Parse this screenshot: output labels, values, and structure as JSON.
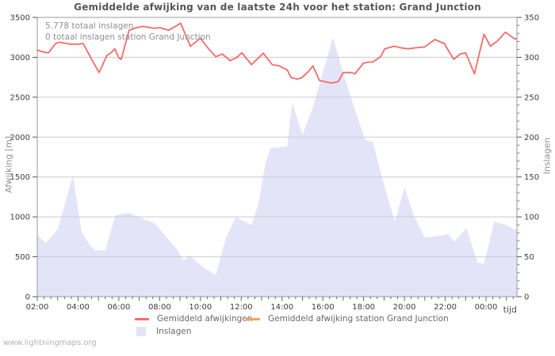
{
  "title": "Gemiddelde afwijking van de laatste 24h voor het station: Grand Junction",
  "annotation": {
    "total": "5.778 totaal inslagen",
    "station": "0 totaal inslagen station Grand Junction"
  },
  "watermark": "www.lightningmaps.org",
  "axes": {
    "left_label": "Afwijking  [m]",
    "right_label": "Inslagen",
    "x_label": "tijd",
    "left_ticks": [
      "0",
      "500",
      "1000",
      "1500",
      "2000",
      "2500",
      "3000",
      "3500"
    ],
    "right_ticks": [
      "0",
      "50",
      "100",
      "150",
      "200",
      "250",
      "300",
      "350"
    ],
    "x_ticks": [
      "02:00",
      "04:00",
      "06:00",
      "08:00",
      "10:00",
      "12:00",
      "14:00",
      "16:00",
      "18:00",
      "20:00",
      "22:00",
      "00:00"
    ]
  },
  "legend": {
    "avg": {
      "label": "Gemiddeld afwijkingen",
      "color": "#f56a6a"
    },
    "station": {
      "label": "Gemiddeld afwijking station Grand Junction",
      "color": "#f2a45e"
    },
    "strikes": {
      "label": "Inslagen",
      "color": "#e4e4f8"
    }
  },
  "chart_data": {
    "type": "line+area",
    "title": "Gemiddelde afwijking van de laatste 24h voor het station: Grand Junction",
    "x_unit": "time (24h, starting 02:00)",
    "left_ylabel": "Afwijking [m]",
    "right_ylabel": "Inslagen",
    "left_ylim": [
      0,
      3500
    ],
    "right_ylim": [
      0,
      350
    ],
    "grid": true,
    "legend_position": "bottom",
    "series": [
      {
        "name": "Gemiddeld afwijkingen",
        "axis": "left",
        "color": "#f56a6a",
        "points": [
          [
            "02:00",
            3090
          ],
          [
            "02:20",
            3064
          ],
          [
            "02:33",
            3057
          ],
          [
            "02:54",
            3173
          ],
          [
            "03:06",
            3189
          ],
          [
            "03:39",
            3163
          ],
          [
            "04:03",
            3166
          ],
          [
            "04:15",
            3173
          ],
          [
            "04:38",
            2991
          ],
          [
            "05:02",
            2809
          ],
          [
            "05:25",
            3024
          ],
          [
            "05:37",
            3057
          ],
          [
            "05:48",
            3106
          ],
          [
            "06:00",
            2991
          ],
          [
            "06:07",
            2975
          ],
          [
            "06:30",
            3338
          ],
          [
            "06:51",
            3371
          ],
          [
            "07:12",
            3388
          ],
          [
            "07:42",
            3363
          ],
          [
            "08:00",
            3371
          ],
          [
            "08:27",
            3339
          ],
          [
            "09:02",
            3427
          ],
          [
            "09:30",
            3139
          ],
          [
            "10:00",
            3238
          ],
          [
            "10:24",
            3106
          ],
          [
            "10:45",
            3007
          ],
          [
            "11:04",
            3041
          ],
          [
            "11:27",
            2960
          ],
          [
            "11:46",
            2995
          ],
          [
            "12:02",
            3057
          ],
          [
            "12:30",
            2908
          ],
          [
            "13:05",
            3051
          ],
          [
            "13:31",
            2908
          ],
          [
            "13:52",
            2892
          ],
          [
            "14:15",
            2843
          ],
          [
            "14:27",
            2744
          ],
          [
            "14:45",
            2727
          ],
          [
            "14:58",
            2744
          ],
          [
            "15:15",
            2809
          ],
          [
            "15:31",
            2892
          ],
          [
            "15:50",
            2710
          ],
          [
            "16:06",
            2694
          ],
          [
            "16:25",
            2677
          ],
          [
            "16:45",
            2694
          ],
          [
            "17:00",
            2809
          ],
          [
            "17:24",
            2809
          ],
          [
            "17:35",
            2793
          ],
          [
            "17:59",
            2925
          ],
          [
            "18:15",
            2941
          ],
          [
            "18:27",
            2941
          ],
          [
            "18:50",
            3007
          ],
          [
            "19:02",
            3106
          ],
          [
            "19:30",
            3139
          ],
          [
            "19:53",
            3116
          ],
          [
            "20:12",
            3106
          ],
          [
            "20:40",
            3123
          ],
          [
            "21:00",
            3130
          ],
          [
            "21:29",
            3222
          ],
          [
            "21:57",
            3173
          ],
          [
            "22:25",
            2975
          ],
          [
            "22:44",
            3041
          ],
          [
            "23:00",
            3057
          ],
          [
            "23:26",
            2793
          ],
          [
            "23:54",
            3289
          ],
          [
            "00:13",
            3139
          ],
          [
            "00:34",
            3205
          ],
          [
            "00:57",
            3315
          ],
          [
            "01:11",
            3272
          ],
          [
            "01:25",
            3229
          ],
          [
            "01:30",
            3232
          ]
        ]
      },
      {
        "name": "Gemiddeld afwijking station Grand Junction",
        "axis": "left",
        "color": "#f2a45e",
        "points": []
      },
      {
        "name": "Inslagen",
        "axis": "right",
        "color": "#e4e4f8",
        "points": [
          [
            "02:00",
            77
          ],
          [
            "02:25",
            67
          ],
          [
            "03:00",
            84
          ],
          [
            "03:45",
            152
          ],
          [
            "04:10",
            82
          ],
          [
            "04:35",
            64
          ],
          [
            "04:50",
            58
          ],
          [
            "05:20",
            58
          ],
          [
            "05:50",
            102
          ],
          [
            "06:30",
            105
          ],
          [
            "07:20",
            96
          ],
          [
            "07:45",
            92
          ],
          [
            "08:25",
            72
          ],
          [
            "08:50",
            60
          ],
          [
            "09:10",
            45
          ],
          [
            "09:30",
            52
          ],
          [
            "09:50",
            43
          ],
          [
            "10:15",
            35
          ],
          [
            "10:45",
            27
          ],
          [
            "11:15",
            74
          ],
          [
            "11:45",
            100
          ],
          [
            "12:05",
            95
          ],
          [
            "12:30",
            90
          ],
          [
            "12:50",
            115
          ],
          [
            "13:10",
            165
          ],
          [
            "13:25",
            186
          ],
          [
            "14:15",
            188
          ],
          [
            "14:30",
            243
          ],
          [
            "15:00",
            203
          ],
          [
            "15:30",
            236
          ],
          [
            "15:50",
            266
          ],
          [
            "16:30",
            325
          ],
          [
            "17:00",
            280
          ],
          [
            "17:30",
            240
          ],
          [
            "18:05",
            196
          ],
          [
            "18:27",
            194
          ],
          [
            "19:00",
            140
          ],
          [
            "19:32",
            94
          ],
          [
            "20:00",
            137
          ],
          [
            "20:28",
            101
          ],
          [
            "21:00",
            74
          ],
          [
            "21:57",
            77
          ],
          [
            "22:08",
            79
          ],
          [
            "22:27",
            69
          ],
          [
            "23:02",
            86
          ],
          [
            "23:35",
            43
          ],
          [
            "23:54",
            41
          ],
          [
            "00:24",
            94
          ],
          [
            "00:52",
            91
          ],
          [
            "01:25",
            84
          ],
          [
            "01:30",
            84
          ]
        ]
      }
    ]
  }
}
